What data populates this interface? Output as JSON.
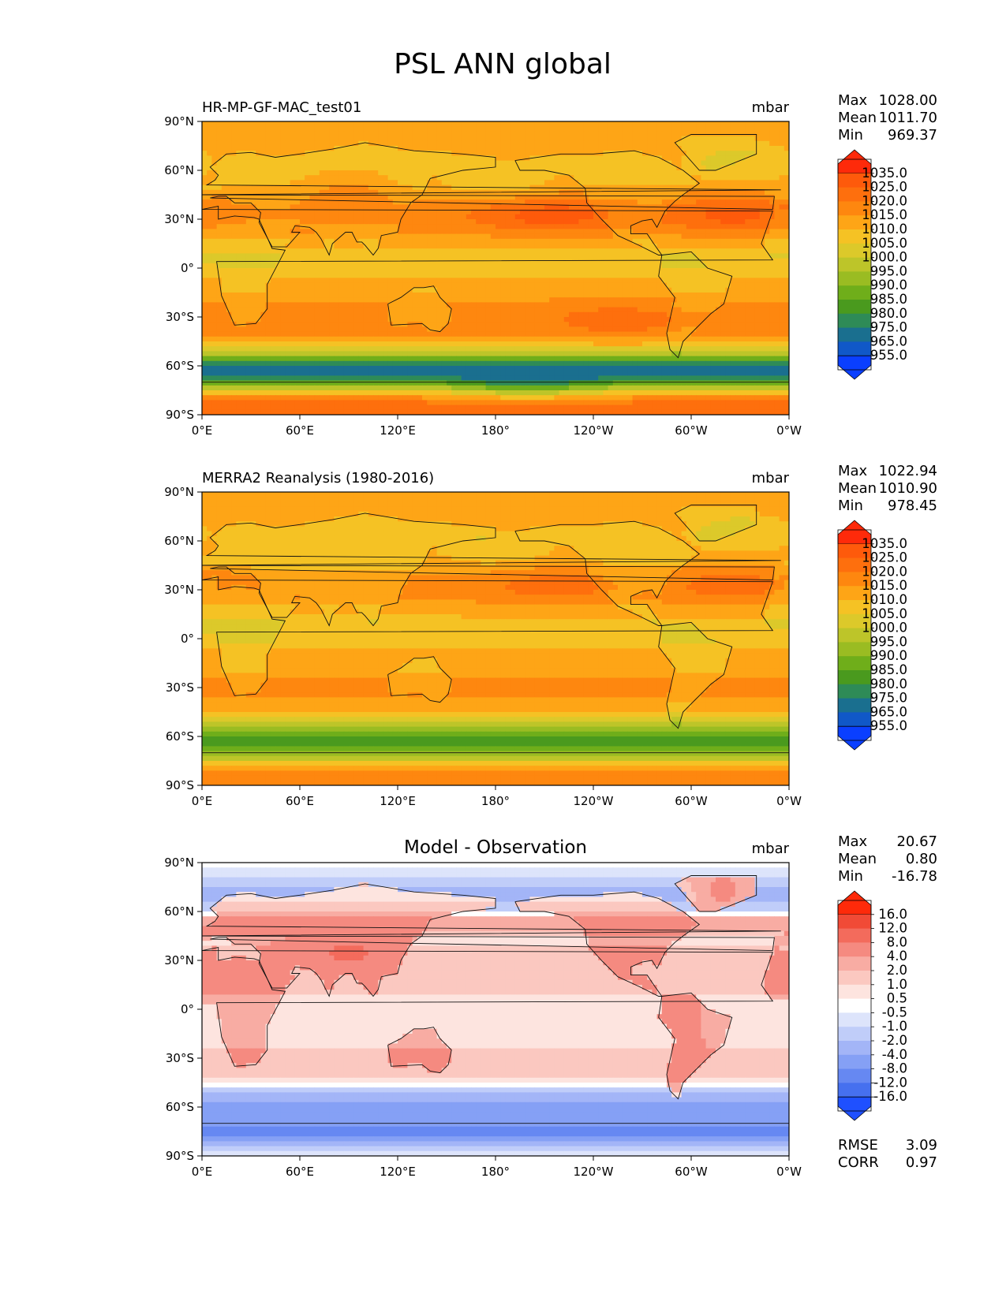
{
  "title": "PSL ANN global",
  "ticks": {
    "lat": [
      "90°N",
      "60°N",
      "30°N",
      "0°",
      "30°S",
      "60°S",
      "90°S"
    ],
    "lon": [
      "0°E",
      "60°E",
      "120°E",
      "180°",
      "120°W",
      "60°W",
      "0°W"
    ]
  },
  "stat_labels": {
    "max": "Max",
    "mean": "Mean",
    "min": "Min",
    "rmse": "RMSE",
    "corr": "CORR"
  },
  "chart_data": [
    {
      "type": "heatmap",
      "title": "HR-MP-GF-MAC_test01",
      "units": "mbar",
      "stats": {
        "max": "1028.00",
        "mean": "1011.70",
        "min": "969.37"
      },
      "colorbar": {
        "levels": [
          "1035.0",
          "1025.0",
          "1020.0",
          "1015.0",
          "1010.0",
          "1005.0",
          "1000.0",
          "995.0",
          "990.0",
          "985.0",
          "980.0",
          "975.0",
          "965.0",
          "955.0"
        ],
        "colors": [
          "#fe2a0a",
          "#fe5a0b",
          "#fe6f0d",
          "#fe870f",
          "#fea516",
          "#f5c224",
          "#dcc92a",
          "#bdc529",
          "#9abc22",
          "#6fae1a",
          "#4a9a1e",
          "#2e8b57",
          "#1a6f8f",
          "#1058c8",
          "#0a3fff"
        ]
      },
      "field": "model"
    },
    {
      "type": "heatmap",
      "title": "MERRA2 Reanalysis (1980-2016)",
      "units": "mbar",
      "stats": {
        "max": "1022.94",
        "mean": "1010.90",
        "min": "978.45"
      },
      "colorbar": {
        "levels": [
          "1035.0",
          "1025.0",
          "1020.0",
          "1015.0",
          "1010.0",
          "1005.0",
          "1000.0",
          "995.0",
          "990.0",
          "985.0",
          "980.0",
          "975.0",
          "965.0",
          "955.0"
        ],
        "colors": [
          "#fe2a0a",
          "#fe5a0b",
          "#fe6f0d",
          "#fe870f",
          "#fea516",
          "#f5c224",
          "#dcc92a",
          "#bdc529",
          "#9abc22",
          "#6fae1a",
          "#4a9a1e",
          "#2e8b57",
          "#1a6f8f",
          "#1058c8",
          "#0a3fff"
        ]
      },
      "field": "obs"
    },
    {
      "type": "heatmap",
      "title": "Model - Observation",
      "units": "mbar",
      "stats": {
        "max": "20.67",
        "mean": "0.80",
        "min": "-16.78"
      },
      "extra_stats": {
        "rmse": "3.09",
        "corr": "0.97"
      },
      "colorbar": {
        "levels": [
          "16.0",
          "12.0",
          "8.0",
          "4.0",
          "2.0",
          "1.0",
          "0.5",
          "-0.5",
          "-1.0",
          "-2.0",
          "-4.0",
          "-8.0",
          "-12.0",
          "-16.0"
        ],
        "colors": [
          "#fe2a0a",
          "#f14a36",
          "#f36b5c",
          "#f58a80",
          "#f8aca3",
          "#fbc8c0",
          "#fde4df",
          "#ffffff",
          "#dde4fb",
          "#c0cdf9",
          "#a3b5f7",
          "#85a0f5",
          "#6688f2",
          "#4670ef",
          "#1f50ff"
        ]
      },
      "field": "diff"
    }
  ]
}
